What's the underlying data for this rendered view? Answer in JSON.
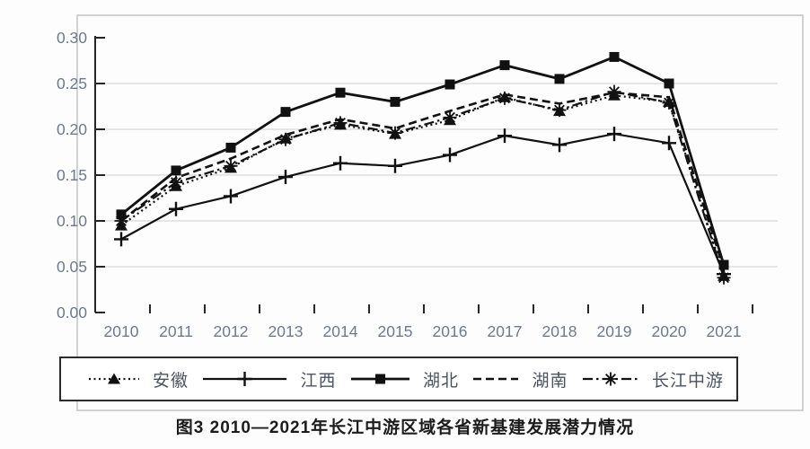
{
  "caption": "图3 2010—2021年长江中游区域各省新基建发展潜力情况",
  "axes": {
    "y_tick_labels": [
      "0.30",
      "0.25",
      "0.20",
      "0.15",
      "0.10",
      "0.05",
      "0.00"
    ],
    "x_tick_labels": [
      "2010",
      "2011",
      "2012",
      "2013",
      "2014",
      "2015",
      "2016",
      "2017",
      "2018",
      "2019",
      "2020",
      "2021"
    ]
  },
  "colors": {
    "series_line": "#111111",
    "gridline": "#d9d9d9",
    "axis_line": "#262626",
    "axis_label": "#6e7a8a",
    "frame_border": "#c4c4c4",
    "legend_border": "#2b2b2b",
    "caption_text": "#1c1c1c"
  },
  "chart_data": {
    "type": "line",
    "title": "",
    "xlabel": "",
    "ylabel": "",
    "x": [
      2010,
      2011,
      2012,
      2013,
      2014,
      2015,
      2016,
      2017,
      2018,
      2019,
      2020,
      2021
    ],
    "ylim": [
      0.0,
      0.3
    ],
    "y_tick_step": 0.05,
    "grid": "horizontal",
    "legend_position": "bottom",
    "series": [
      {
        "name": "安徽",
        "marker": "triangle-marker",
        "line_style": "dotted",
        "values": [
          0.095,
          0.138,
          0.158,
          0.19,
          0.205,
          0.195,
          0.21,
          0.235,
          0.22,
          0.237,
          0.23,
          0.04
        ]
      },
      {
        "name": "江西",
        "marker": "plus-marker",
        "line_style": "solid",
        "values": [
          0.08,
          0.113,
          0.127,
          0.148,
          0.163,
          0.16,
          0.172,
          0.193,
          0.183,
          0.195,
          0.185,
          0.042
        ]
      },
      {
        "name": "湖北",
        "marker": "square-marker",
        "line_style": "solid",
        "values": [
          0.107,
          0.155,
          0.18,
          0.219,
          0.24,
          0.23,
          0.249,
          0.27,
          0.255,
          0.279,
          0.25,
          0.052
        ]
      },
      {
        "name": "湖南",
        "marker": "none",
        "line_style": "dashed",
        "values": [
          0.1,
          0.147,
          0.168,
          0.194,
          0.211,
          0.201,
          0.22,
          0.238,
          0.228,
          0.24,
          0.235,
          0.048
        ]
      },
      {
        "name": "长江中游",
        "marker": "asterisk-marker",
        "line_style": "dash-dot",
        "values": [
          0.1,
          0.142,
          0.16,
          0.189,
          0.207,
          0.196,
          0.213,
          0.234,
          0.221,
          0.241,
          0.229,
          0.038
        ]
      }
    ]
  }
}
